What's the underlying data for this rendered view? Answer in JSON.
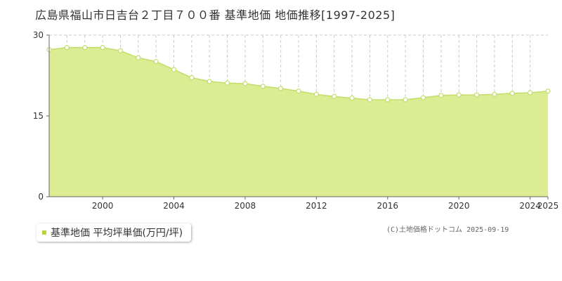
{
  "page": {
    "title": "広島県福山市日吉台２丁目７００番 基準地価 地価推移[1997-2025]",
    "credit": "(C)土地価格ドットコム 2025-09-19"
  },
  "legend": {
    "label": "基準地価 平均坪単価(万円/坪)"
  },
  "colors": {
    "area_fill": "#dcec92",
    "line": "#c3dd6c",
    "marker_fill": "#ffffff",
    "marker_stroke": "#c3dd6c",
    "grid": "#cccccc",
    "axis": "#666666",
    "legend_swatch": "#b5d63d"
  },
  "chart_data": {
    "type": "area",
    "title": "広島県福山市日吉台２丁目７００番 基準地価 地価推移[1997-2025]",
    "xlabel": "",
    "ylabel": "",
    "xlim": [
      1997,
      2025
    ],
    "ylim": [
      0,
      30
    ],
    "y_ticks": [
      0,
      15,
      30
    ],
    "x_tick_labels": [
      2000,
      2004,
      2008,
      2012,
      2016,
      2020,
      2024,
      2025
    ],
    "grid": true,
    "legend_position": "bottom-left",
    "series": [
      {
        "name": "基準地価 平均坪単価(万円/坪)",
        "x": [
          1997,
          1998,
          1999,
          2000,
          2001,
          2002,
          2003,
          2004,
          2005,
          2006,
          2007,
          2008,
          2009,
          2010,
          2011,
          2012,
          2013,
          2014,
          2015,
          2016,
          2017,
          2018,
          2019,
          2020,
          2021,
          2022,
          2023,
          2024,
          2025
        ],
        "values": [
          27.3,
          27.7,
          27.7,
          27.7,
          27.1,
          25.8,
          25.1,
          23.6,
          22.1,
          21.4,
          21.1,
          21.0,
          20.5,
          20.1,
          19.6,
          19.0,
          18.6,
          18.3,
          18.0,
          18.0,
          18.0,
          18.4,
          18.8,
          18.9,
          18.9,
          19.0,
          19.2,
          19.3,
          19.6
        ]
      }
    ]
  }
}
